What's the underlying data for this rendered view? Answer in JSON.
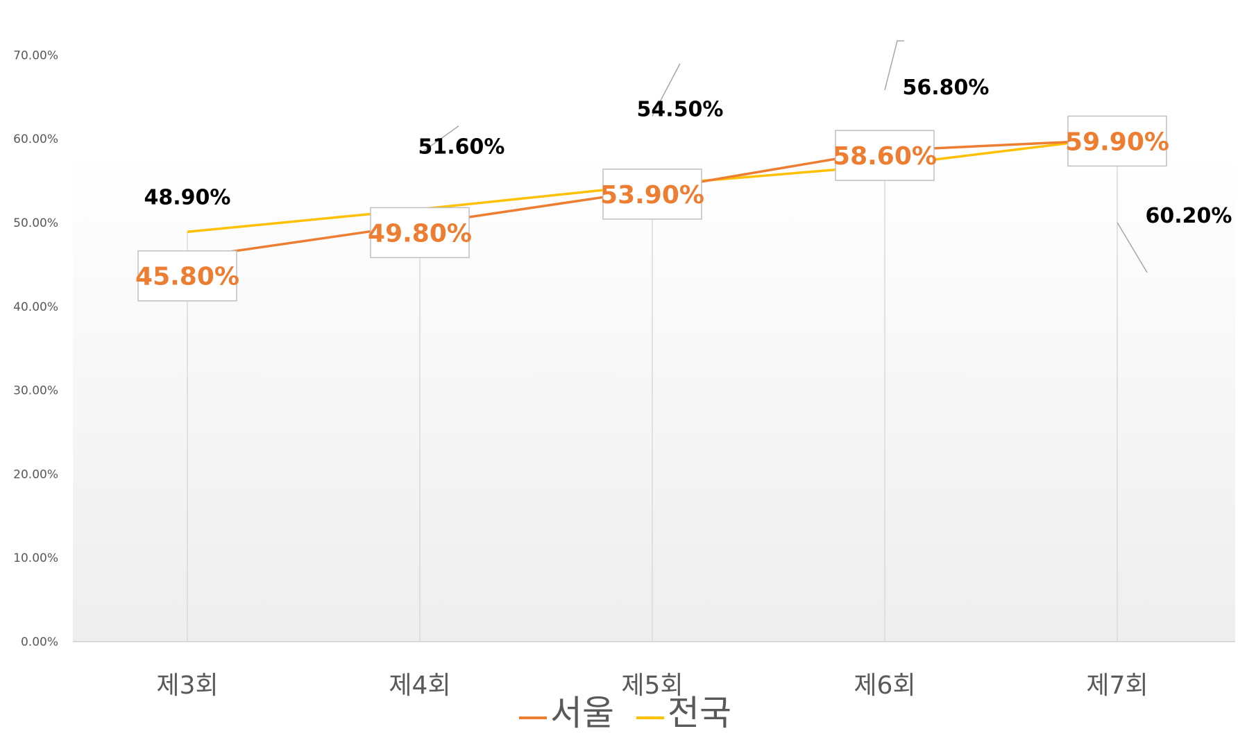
{
  "chart_data": {
    "type": "line",
    "categories": [
      "제3회",
      "제4회",
      "제5회",
      "제6회",
      "제7회"
    ],
    "series": [
      {
        "name": "서울",
        "values": [
          45.8,
          49.8,
          53.9,
          58.6,
          59.9
        ],
        "labels": [
          "45.80%",
          "49.80%",
          "53.90%",
          "58.60%",
          "59.90%"
        ],
        "color": "#ED7D31"
      },
      {
        "name": "전국",
        "values": [
          48.9,
          51.6,
          54.5,
          56.8,
          60.2
        ],
        "labels": [
          "48.90%",
          "51.60%",
          "54.50%",
          "56.80%",
          "60.20%"
        ],
        "color": "#FFC000"
      }
    ],
    "ylim": [
      0,
      70
    ],
    "yticks": [
      "0.00%",
      "10.00%",
      "20.00%",
      "30.00%",
      "40.00%",
      "50.00%",
      "60.00%",
      "70.00%"
    ],
    "legend_position": "bottom",
    "drop_lines": true
  }
}
